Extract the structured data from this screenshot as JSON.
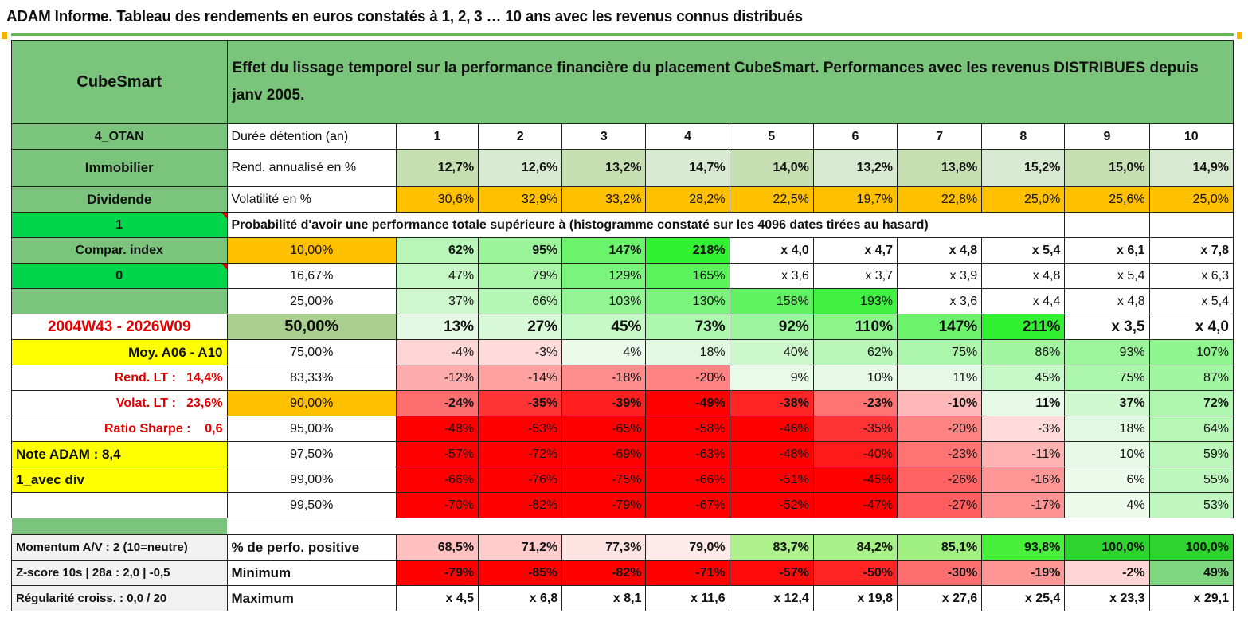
{
  "title": "ADAM Informe. Tableau des rendements en euros constatés à 1, 2, 3 … 10 ans avec les revenus connus distribués",
  "header": {
    "name": "CubeSmart",
    "description": "Effet du lissage temporel sur la performance financière du placement CubeSmart. Performances avec les revenus DISTRIBUES depuis janv 2005."
  },
  "left_labels": {
    "code": "4_OTAN",
    "sector": "Immobilier",
    "type": "Dividende",
    "flag1": "1",
    "compar": "Compar. index",
    "flag0": "0",
    "blank": "",
    "period": "2004W43 - 2026W09",
    "moy": "Moy. A06 - A10",
    "rend_lt_label": "Rend. LT :",
    "rend_lt_value": "14,4%",
    "volat_lt_label": "Volat. LT :",
    "volat_lt_value": "23,6%",
    "sharpe_label": "Ratio Sharpe :",
    "sharpe_value": "0,6",
    "note": "Note ADAM : 8,4",
    "avec_div": "1_avec div",
    "momentum": "Momentum A/V : 2 (10=neutre)",
    "zscore": "Z-score 10s | 28a : 2,0 | -0,5",
    "regularite": "Régularité croiss. : 0,0 / 20"
  },
  "row_labels": {
    "duree": "Durée détention (an)",
    "rend": "Rend. annualisé en %",
    "volat": "Volatilité en %",
    "proba": "Probabilité d'avoir une performance totale supérieure à (histogramme constaté sur les 4096 dates tirées au hasard)",
    "positive": "% de perfo. positive",
    "minimum": "Minimum",
    "maximum": "Maximum"
  },
  "years": [
    "1",
    "2",
    "3",
    "4",
    "5",
    "6",
    "7",
    "8",
    "9",
    "10"
  ],
  "rend": [
    "12,7%",
    "12,6%",
    "13,2%",
    "14,7%",
    "14,0%",
    "13,2%",
    "13,8%",
    "15,2%",
    "15,0%",
    "14,9%"
  ],
  "volat": [
    "30,6%",
    "32,9%",
    "33,2%",
    "28,2%",
    "22,5%",
    "19,7%",
    "22,8%",
    "25,0%",
    "25,6%",
    "25,0%"
  ],
  "percentiles": [
    {
      "p": "10,00%",
      "v": [
        "62%",
        "95%",
        "147%",
        "218%",
        "x 4,0",
        "x 4,7",
        "x 4,8",
        "x 5,4",
        "x 6,1",
        "x 7,8"
      ]
    },
    {
      "p": "16,67%",
      "v": [
        "47%",
        "79%",
        "129%",
        "165%",
        "x 3,6",
        "x 3,7",
        "x 3,9",
        "x 4,8",
        "x 5,4",
        "x 6,3"
      ]
    },
    {
      "p": "25,00%",
      "v": [
        "37%",
        "66%",
        "103%",
        "130%",
        "158%",
        "193%",
        "x 3,6",
        "x 4,4",
        "x 4,8",
        "x 5,4"
      ]
    },
    {
      "p": "50,00%",
      "v": [
        "13%",
        "27%",
        "45%",
        "73%",
        "92%",
        "110%",
        "147%",
        "211%",
        "x 3,5",
        "x 4,0"
      ]
    },
    {
      "p": "75,00%",
      "v": [
        "-4%",
        "-3%",
        "4%",
        "18%",
        "40%",
        "62%",
        "75%",
        "86%",
        "93%",
        "107%"
      ]
    },
    {
      "p": "83,33%",
      "v": [
        "-12%",
        "-14%",
        "-18%",
        "-20%",
        "9%",
        "10%",
        "11%",
        "45%",
        "75%",
        "87%"
      ]
    },
    {
      "p": "90,00%",
      "v": [
        "-24%",
        "-35%",
        "-39%",
        "-49%",
        "-38%",
        "-23%",
        "-10%",
        "11%",
        "37%",
        "72%"
      ]
    },
    {
      "p": "95,00%",
      "v": [
        "-48%",
        "-53%",
        "-65%",
        "-58%",
        "-46%",
        "-35%",
        "-20%",
        "-3%",
        "18%",
        "64%"
      ]
    },
    {
      "p": "97,50%",
      "v": [
        "-57%",
        "-72%",
        "-69%",
        "-63%",
        "-48%",
        "-40%",
        "-23%",
        "-11%",
        "10%",
        "59%"
      ]
    },
    {
      "p": "99,00%",
      "v": [
        "-66%",
        "-76%",
        "-75%",
        "-66%",
        "-51%",
        "-45%",
        "-26%",
        "-16%",
        "6%",
        "55%"
      ]
    },
    {
      "p": "99,50%",
      "v": [
        "-70%",
        "-82%",
        "-79%",
        "-67%",
        "-52%",
        "-47%",
        "-27%",
        "-17%",
        "4%",
        "53%"
      ]
    }
  ],
  "positive": [
    "68,5%",
    "71,2%",
    "77,3%",
    "79,0%",
    "83,7%",
    "84,2%",
    "85,1%",
    "93,8%",
    "100,0%",
    "100,0%"
  ],
  "minimum": [
    "-79%",
    "-85%",
    "-82%",
    "-71%",
    "-57%",
    "-50%",
    "-30%",
    "-19%",
    "-2%",
    "49%"
  ],
  "maximum": [
    "x 4,5",
    "x 6,8",
    "x 8,1",
    "x 11,6",
    "x 12,4",
    "x 19,8",
    "x 27,6",
    "x 25,4",
    "x 23,3",
    "x 29,1"
  ],
  "colors": {
    "green_label": "#7ac57b",
    "bright_green": "#00d54b",
    "yellow": "#ffff00",
    "orange": "#ffc000",
    "red": "#ff0000"
  }
}
